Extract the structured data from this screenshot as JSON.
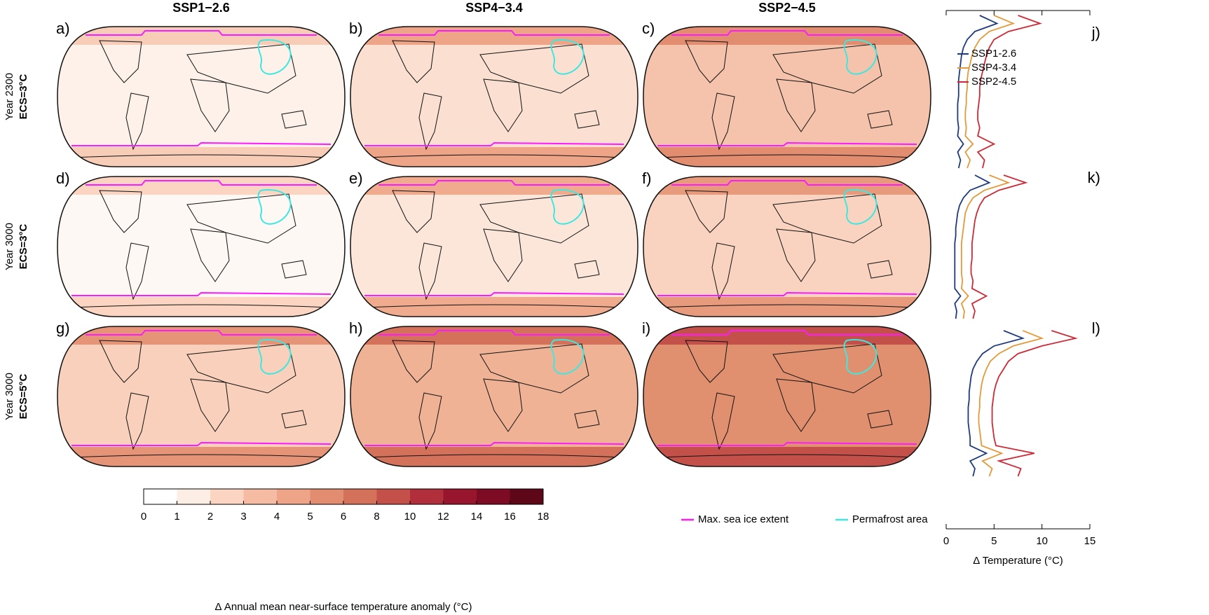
{
  "column_titles": [
    "SSP1−2.6",
    "SSP4−3.4",
    "SSP2−4.5"
  ],
  "row_labels": [
    {
      "year": "Year 2300",
      "ecs": "ECS=3°C"
    },
    {
      "year": "Year 3000",
      "ecs": "ECS=3°C"
    },
    {
      "year": "Year 3000",
      "ecs": "ECS=5°C"
    }
  ],
  "panels": [
    {
      "label": "a)",
      "fill": "#fdf1ea",
      "polar": "#f8cdb8"
    },
    {
      "label": "b)",
      "fill": "#fbdfd0",
      "polar": "#eda487"
    },
    {
      "label": "c)",
      "fill": "#f5c3ab",
      "polar": "#e28d70"
    },
    {
      "label": "d)",
      "fill": "#fef8f4",
      "polar": "#fbd5c2"
    },
    {
      "label": "e)",
      "fill": "#fce6da",
      "polar": "#f0ab8e"
    },
    {
      "label": "f)",
      "fill": "#f9d3bf",
      "polar": "#e89a7c"
    },
    {
      "label": "g)",
      "fill": "#f8d0bb",
      "polar": "#e69477"
    },
    {
      "label": "h)",
      "fill": "#f0b295",
      "polar": "#d4715a"
    },
    {
      "label": "i)",
      "fill": "#e0906f",
      "polar": "#c4504a"
    }
  ],
  "colorbar": {
    "label": "Δ Annual mean near-surface temperature anomaly (°C)",
    "ticks": [
      0,
      1,
      2,
      3,
      4,
      5,
      6,
      8,
      10,
      12,
      14,
      16,
      18
    ],
    "colors": [
      "#ffffff",
      "#fdeee5",
      "#fbd5c2",
      "#f5bca3",
      "#eda487",
      "#e28d70",
      "#d4715a",
      "#c4504a",
      "#b02f3a",
      "#98162d",
      "#7e0b24",
      "#5e0719"
    ]
  },
  "map_legend": [
    {
      "name": "Max. sea ice extent",
      "color": "#ff1aff"
    },
    {
      "name": "Permafrost area",
      "color": "#3ee8e0"
    }
  ],
  "chart_data": {
    "type": "line",
    "xlabel": "Δ Temperature (°C)",
    "xlim": [
      0,
      15
    ],
    "xticks": [
      0,
      5,
      10,
      15
    ],
    "series": [
      {
        "name": "SSP1-2.6",
        "color": "#1f3a7a"
      },
      {
        "name": "SSP4-3.4",
        "color": "#e39a3b"
      },
      {
        "name": "SSP2-4.5",
        "color": "#cc2a36"
      }
    ],
    "panels": [
      {
        "label": "j)",
        "values": [
          [
            3.5,
            5.3,
            3.0,
            2.2,
            1.8,
            1.6,
            1.5,
            1.4,
            1.3,
            1.3,
            1.3,
            1.2,
            1.2,
            1.2,
            1.3,
            1.2,
            1.8,
            1.2,
            1.5,
            1.3
          ],
          [
            5,
            7,
            4.5,
            3.5,
            3,
            2.7,
            2.5,
            2.3,
            2.2,
            2.2,
            2.1,
            2.1,
            2.0,
            2.0,
            2.1,
            2.0,
            2.8,
            2.0,
            2.5,
            2.2
          ],
          [
            7.5,
            9.8,
            6.5,
            5.0,
            4.5,
            4.2,
            4.0,
            3.8,
            3.6,
            3.5,
            3.5,
            3.4,
            3.3,
            3.3,
            3.5,
            3.3,
            5.0,
            3.3,
            4.0,
            3.8
          ]
        ]
      },
      {
        "label": "k)",
        "values": [
          [
            3,
            4.5,
            2.5,
            1.8,
            1.4,
            1.2,
            1.1,
            1.0,
            1.0,
            0.9,
            0.9,
            0.9,
            0.9,
            0.9,
            0.9,
            0.9,
            1.5,
            0.9,
            1.1,
            1.0
          ],
          [
            4.5,
            6.5,
            4.0,
            2.8,
            2.3,
            2.0,
            1.9,
            1.8,
            1.7,
            1.6,
            1.6,
            1.6,
            1.6,
            1.6,
            1.7,
            1.6,
            2.3,
            1.6,
            1.9,
            1.8
          ],
          [
            6,
            8.3,
            5.5,
            4.0,
            3.5,
            3.2,
            3.0,
            2.9,
            2.8,
            2.7,
            2.7,
            2.7,
            2.6,
            2.6,
            2.8,
            2.7,
            4.2,
            2.7,
            3.0,
            2.8
          ]
        ]
      },
      {
        "label": "l)",
        "values": [
          [
            6,
            8,
            5,
            3.8,
            3.2,
            2.8,
            2.6,
            2.5,
            2.4,
            2.4,
            2.3,
            2.3,
            2.3,
            2.4,
            2.5,
            2.5,
            4.2,
            2.5,
            3,
            2.8
          ],
          [
            8,
            10,
            7,
            5.5,
            4.6,
            4.2,
            3.9,
            3.7,
            3.6,
            3.5,
            3.5,
            3.4,
            3.4,
            3.5,
            3.6,
            3.7,
            5.8,
            3.8,
            4.8,
            4.5
          ],
          [
            11,
            13.5,
            10,
            7.5,
            6.5,
            6.0,
            5.5,
            5.2,
            5.0,
            4.9,
            4.8,
            4.8,
            4.8,
            4.9,
            5.0,
            5.2,
            9.2,
            5.5,
            7.8,
            7.5
          ]
        ]
      }
    ]
  }
}
